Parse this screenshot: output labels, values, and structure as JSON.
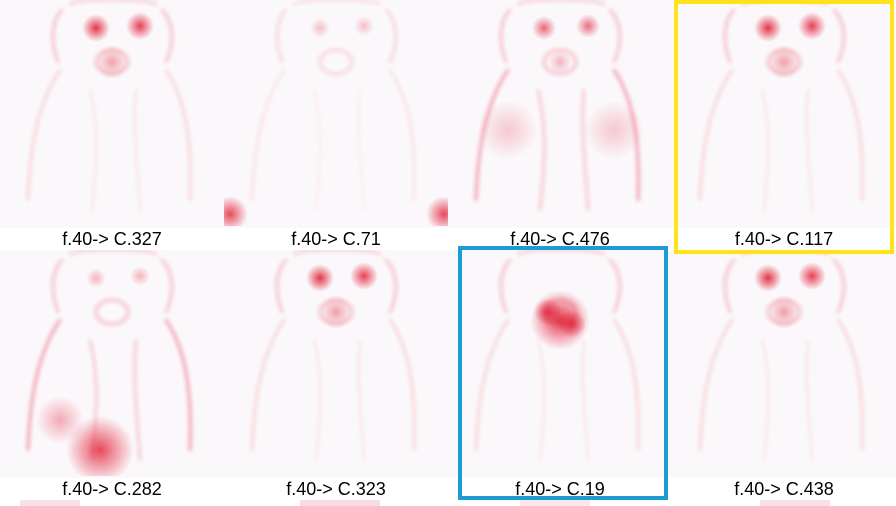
{
  "tiles": [
    {
      "label": "f.40-> C.327",
      "focus": "face",
      "highlight": null
    },
    {
      "label": "f.40-> C.71",
      "focus": "bottom-corners",
      "highlight": null
    },
    {
      "label": "f.40-> C.476",
      "focus": "body-outline",
      "highlight": null
    },
    {
      "label": "f.40-> C.117",
      "focus": "face",
      "highlight": "yellow"
    },
    {
      "label": "f.40-> C.282",
      "focus": "chest",
      "highlight": null
    },
    {
      "label": "f.40-> C.323",
      "focus": "face",
      "highlight": null
    },
    {
      "label": "f.40-> C.19",
      "focus": "muzzle",
      "highlight": "blue"
    },
    {
      "label": "f.40-> C.438",
      "focus": "face",
      "highlight": null
    }
  ],
  "colors": {
    "heat": "#e0142c",
    "background": "#fbf8fb",
    "yellow": "#ffe21a",
    "blue": "#1e9bd3"
  }
}
